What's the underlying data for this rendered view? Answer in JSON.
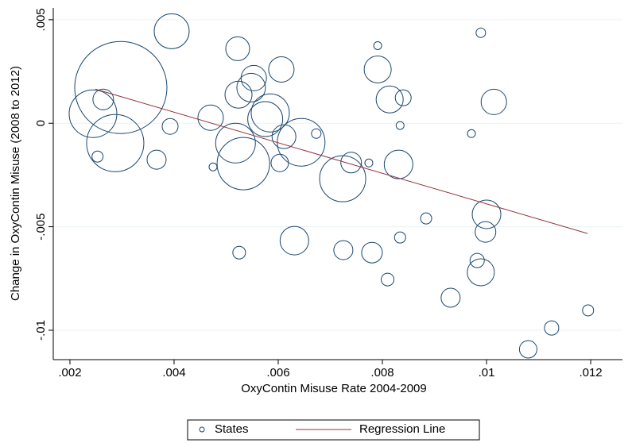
{
  "chart_data": {
    "type": "scatter",
    "x_label": "OxyContin Misuse Rate 2004-2009",
    "y_label": "Change in OxyContin Misuse (2008 to 2012)",
    "xlim": [
      0.00168,
      0.01261
    ],
    "ylim": [
      -0.01142,
      0.00557
    ],
    "xticks": [
      {
        "value": 0.002,
        "label": ".002"
      },
      {
        "value": 0.004,
        "label": ".004"
      },
      {
        "value": 0.006,
        "label": ".006"
      },
      {
        "value": 0.008,
        "label": ".008"
      },
      {
        "value": 0.01,
        "label": ".01"
      },
      {
        "value": 0.012,
        "label": ".012"
      }
    ],
    "yticks": [
      {
        "value": -0.01,
        "label": "-.01"
      },
      {
        "value": -0.005,
        "label": "-.005"
      },
      0,
      {
        "value": 0.005,
        "label": ".005"
      }
    ],
    "grid": true,
    "legend": "bottom",
    "series": [
      {
        "name": "States",
        "type": "scatter",
        "color": "#1a476f",
        "x": [
          0.002977,
          0.002443,
          0.00287,
          0.00264,
          0.00253,
          0.003954,
          0.003924,
          0.003664,
          0.004702,
          0.004748,
          0.005221,
          0.005237,
          0.00553,
          0.00548,
          0.00518,
          0.00533,
          0.005847,
          0.00575,
          0.00606,
          0.00603,
          0.00611,
          0.00631,
          0.00525,
          0.00644,
          0.007237,
          0.0074,
          0.00673,
          0.00774,
          0.00791,
          0.00791,
          0.00814,
          0.0084,
          0.00834,
          0.00831,
          0.00725,
          0.0078,
          0.0081,
          0.00834,
          0.00884,
          0.00931,
          0.00971,
          0.00989,
          0.01014,
          0.01,
          0.00998,
          0.00982,
          0.00989,
          0.0108,
          0.01125,
          0.01195
        ],
        "values": [
          0.001724,
          0.00046,
          -0.00096,
          0.00115,
          -0.00161,
          0.004444,
          -0.000153,
          -0.00176,
          0.000268,
          -0.00211,
          0.0036,
          0.00138,
          0.00218,
          0.00172,
          -0.00096,
          -0.00195,
          0.0005,
          0.0002,
          0.0026,
          -0.00192,
          -0.00065,
          -0.00567,
          -0.00625,
          -0.00092,
          -0.00268,
          -0.0019,
          -0.0005,
          -0.00192,
          0.0026,
          0.00375,
          0.00115,
          0.00123,
          -0.00011,
          -0.00199,
          -0.00613,
          -0.00625,
          -0.00755,
          -0.00552,
          -0.0046,
          -0.00843,
          -0.0005,
          0.00437,
          0.00103,
          -0.0044,
          -0.00525,
          -0.00663,
          -0.0072,
          -0.01092,
          -0.00989,
          -0.00904
        ],
        "sizes": [
          3364,
          900,
          1296,
          169,
          49,
          484,
          100,
          144,
          256,
          25,
          225,
          289,
          256,
          324,
          625,
          1089,
          576,
          484,
          256,
          121,
          225,
          324,
          64,
          900,
          841,
          169,
          36,
          25,
          289,
          25,
          289,
          100,
          25,
          324,
          144,
          169,
          64,
          49,
          49,
          144,
          25,
          36,
          256,
          324,
          169,
          81,
          289,
          121,
          81,
          49
        ]
      },
      {
        "name": "Regression Line",
        "type": "line",
        "color": "#90353b",
        "x": [
          0.002489,
          0.01194
        ],
        "values": [
          0.001648,
          -0.005326
        ]
      }
    ]
  }
}
